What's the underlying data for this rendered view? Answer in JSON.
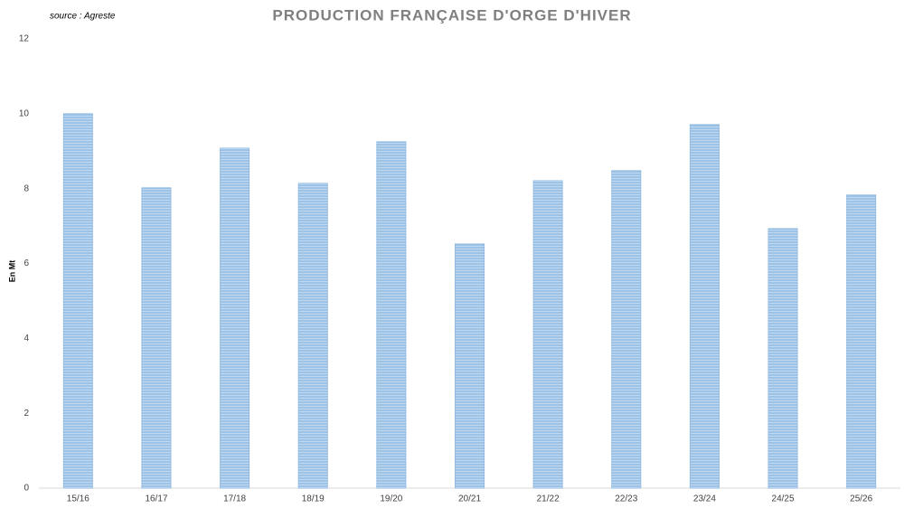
{
  "chart_data": {
    "type": "bar",
    "title": "PRODUCTION FRANÇAISE D'ORGE D'HIVER",
    "annotation": "source : Agreste",
    "y_label": "En Mt",
    "categories": [
      "15/16",
      "16/17",
      "17/18",
      "18/19",
      "19/20",
      "20/21",
      "21/22",
      "22/23",
      "23/24",
      "24/25",
      "25/26"
    ],
    "values": [
      10.0,
      8.02,
      9.08,
      8.14,
      9.25,
      6.52,
      8.21,
      8.48,
      9.71,
      6.93,
      7.83
    ],
    "color": "#9dc3e6",
    "ylim": [
      0,
      12
    ],
    "yticks": [
      0,
      2,
      4,
      6,
      8,
      10,
      12
    ],
    "grid": false
  }
}
